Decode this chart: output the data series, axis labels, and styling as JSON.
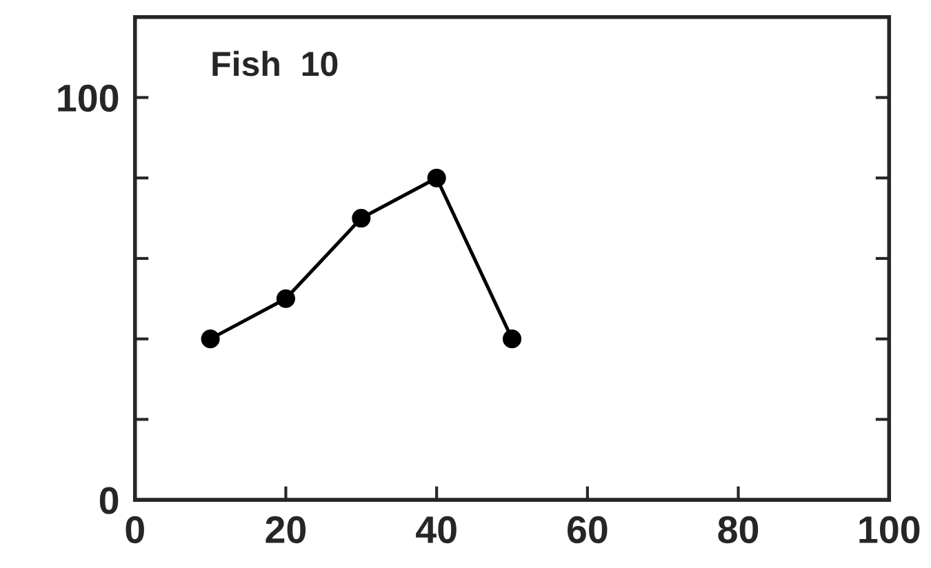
{
  "chart_data": {
    "type": "line",
    "annotations": [
      "Fish  10"
    ],
    "x": [
      10,
      20,
      30,
      40,
      50
    ],
    "series": [
      {
        "color": "#000000",
        "values": [
          40,
          50,
          70,
          80,
          40
        ]
      }
    ],
    "marker": "circle",
    "line_style": "solid",
    "grid": false,
    "legend": false,
    "xlim": [
      0,
      100
    ],
    "xticks": [
      0,
      20,
      40,
      60,
      80,
      100
    ],
    "ylim": [
      0,
      120
    ],
    "yticks": [
      0,
      {
        "value": 20,
        "label": null
      },
      {
        "value": 40,
        "label": null
      },
      {
        "value": 60,
        "label": null
      },
      {
        "value": 80,
        "label": null
      },
      100
    ]
  }
}
